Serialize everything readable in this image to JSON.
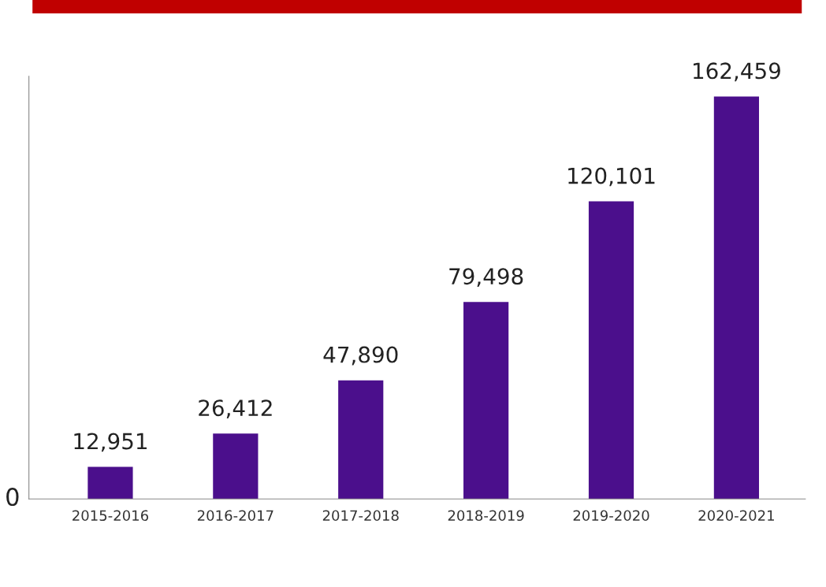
{
  "chart_data": {
    "type": "bar",
    "categories": [
      "2015-2016",
      "2016-2017",
      "2017-2018",
      "2018-2019",
      "2019-2020",
      "2020-2021"
    ],
    "values": [
      12951,
      26412,
      47890,
      79498,
      120101,
      162459
    ],
    "color": "#4b0f8c",
    "data_labels": true,
    "value_labels": [
      "12,951",
      "26,412",
      "47,890",
      "79,498",
      "120,101",
      "162,459"
    ],
    "annotations": [
      "0"
    ],
    "grid": false,
    "legend": false
  }
}
